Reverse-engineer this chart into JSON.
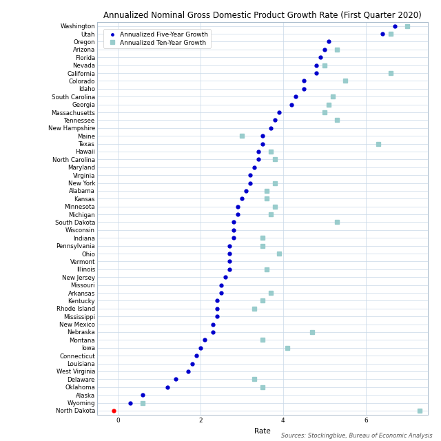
{
  "title": "Annualized Nominal Gross Domestic Product Growth Rate (First Quarter 2020)",
  "xlabel": "Rate",
  "source_text": "Sources: Stockingblue, Bureau of Economic Analysis",
  "states": [
    "Washington",
    "Utah",
    "Oregon",
    "Arizona",
    "Florida",
    "Nevada",
    "California",
    "Colorado",
    "Idaho",
    "South Carolina",
    "Georgia",
    "Massachusetts",
    "Tennessee",
    "New Hampshire",
    "Maine",
    "Texas",
    "Hawaii",
    "North Carolina",
    "Maryland",
    "Virginia",
    "New York",
    "Alabama",
    "Kansas",
    "Minnesota",
    "Michigan",
    "South Dakota",
    "Wisconsin",
    "Indiana",
    "Pennsylvania",
    "Ohio",
    "Vermont",
    "Illinois",
    "New Jersey",
    "Missouri",
    "Arkansas",
    "Kentucky",
    "Rhode Island",
    "Mississippi",
    "New Mexico",
    "Nebraska",
    "Montana",
    "Iowa",
    "Connecticut",
    "Louisiana",
    "West Virginia",
    "Delaware",
    "Oklahoma",
    "Alaska",
    "Wyoming",
    "North Dakota"
  ],
  "five_year": [
    6.7,
    6.4,
    5.1,
    5.0,
    4.9,
    4.8,
    4.8,
    4.5,
    4.5,
    4.3,
    4.2,
    3.9,
    3.8,
    3.7,
    3.5,
    3.5,
    3.4,
    3.4,
    3.3,
    3.2,
    3.2,
    3.1,
    3.0,
    2.9,
    2.9,
    2.8,
    2.8,
    2.8,
    2.7,
    2.7,
    2.7,
    2.7,
    2.6,
    2.5,
    2.5,
    2.4,
    2.4,
    2.4,
    2.3,
    2.3,
    2.1,
    2.0,
    1.9,
    1.8,
    1.7,
    1.4,
    1.2,
    0.6,
    0.3,
    -0.1
  ],
  "ten_year": [
    7.0,
    6.6,
    null,
    5.3,
    null,
    5.0,
    6.6,
    5.5,
    null,
    5.2,
    5.1,
    5.0,
    5.3,
    null,
    3.0,
    6.3,
    3.7,
    3.8,
    null,
    null,
    3.8,
    3.6,
    3.6,
    3.8,
    3.7,
    5.3,
    null,
    3.5,
    3.5,
    3.9,
    null,
    3.6,
    null,
    null,
    3.7,
    3.5,
    3.3,
    null,
    null,
    4.7,
    3.5,
    4.1,
    null,
    null,
    null,
    3.3,
    3.5,
    null,
    0.6,
    7.3
  ],
  "dot_color": "#0000cc",
  "square_color": "#99cccc",
  "bg_color": "#ffffff",
  "grid_color": "#c8d8e8",
  "xlim": [
    -0.5,
    7.5
  ],
  "title_fontsize": 8.5,
  "label_fontsize": 7.5,
  "tick_fontsize": 6.5,
  "ytick_fontsize": 6.2
}
